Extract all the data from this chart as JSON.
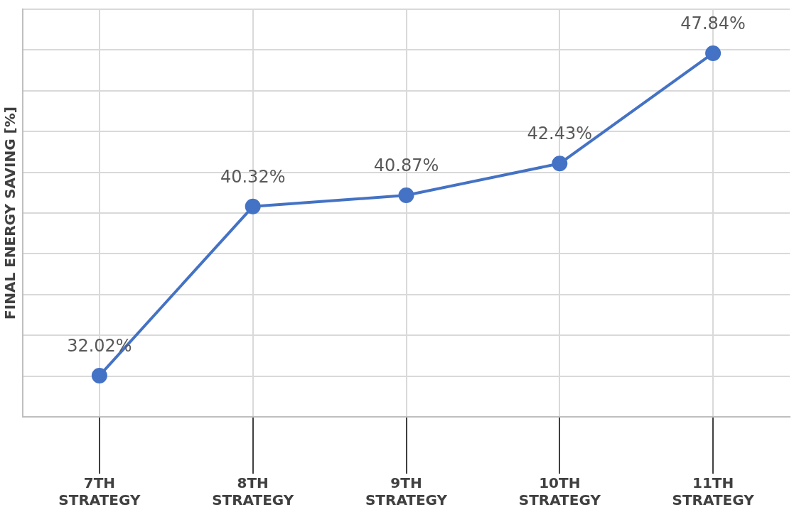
{
  "chart_data": {
    "type": "line",
    "ylabel": "FINAL ENERGY SAVING [%]",
    "categories": [
      "7TH STRATEGY",
      "8TH STRATEGY",
      "9TH STRATEGY",
      "10TH STRATEGY",
      "11TH STRATEGY"
    ],
    "values": [
      32.02,
      40.32,
      40.87,
      42.43,
      47.84
    ],
    "value_labels": [
      "32.02%",
      "40.32%",
      "40.87%",
      "42.43%",
      "47.84%"
    ],
    "color": "#4472c4",
    "marker": "circle",
    "line_style": "solid",
    "ylim": [
      30,
      50
    ],
    "yticks": [
      {
        "value": 30,
        "label": null
      },
      {
        "value": 32,
        "label": null
      },
      {
        "value": 34,
        "label": null
      },
      {
        "value": 36,
        "label": null
      },
      {
        "value": 38,
        "label": null
      },
      {
        "value": 40,
        "label": null
      },
      {
        "value": 42,
        "label": null
      },
      {
        "value": 44,
        "label": null
      },
      {
        "value": 46,
        "label": null
      },
      {
        "value": 48,
        "label": null
      },
      {
        "value": 50,
        "label": null
      }
    ],
    "tick_labels": "x",
    "grid": true,
    "legend": false
  }
}
